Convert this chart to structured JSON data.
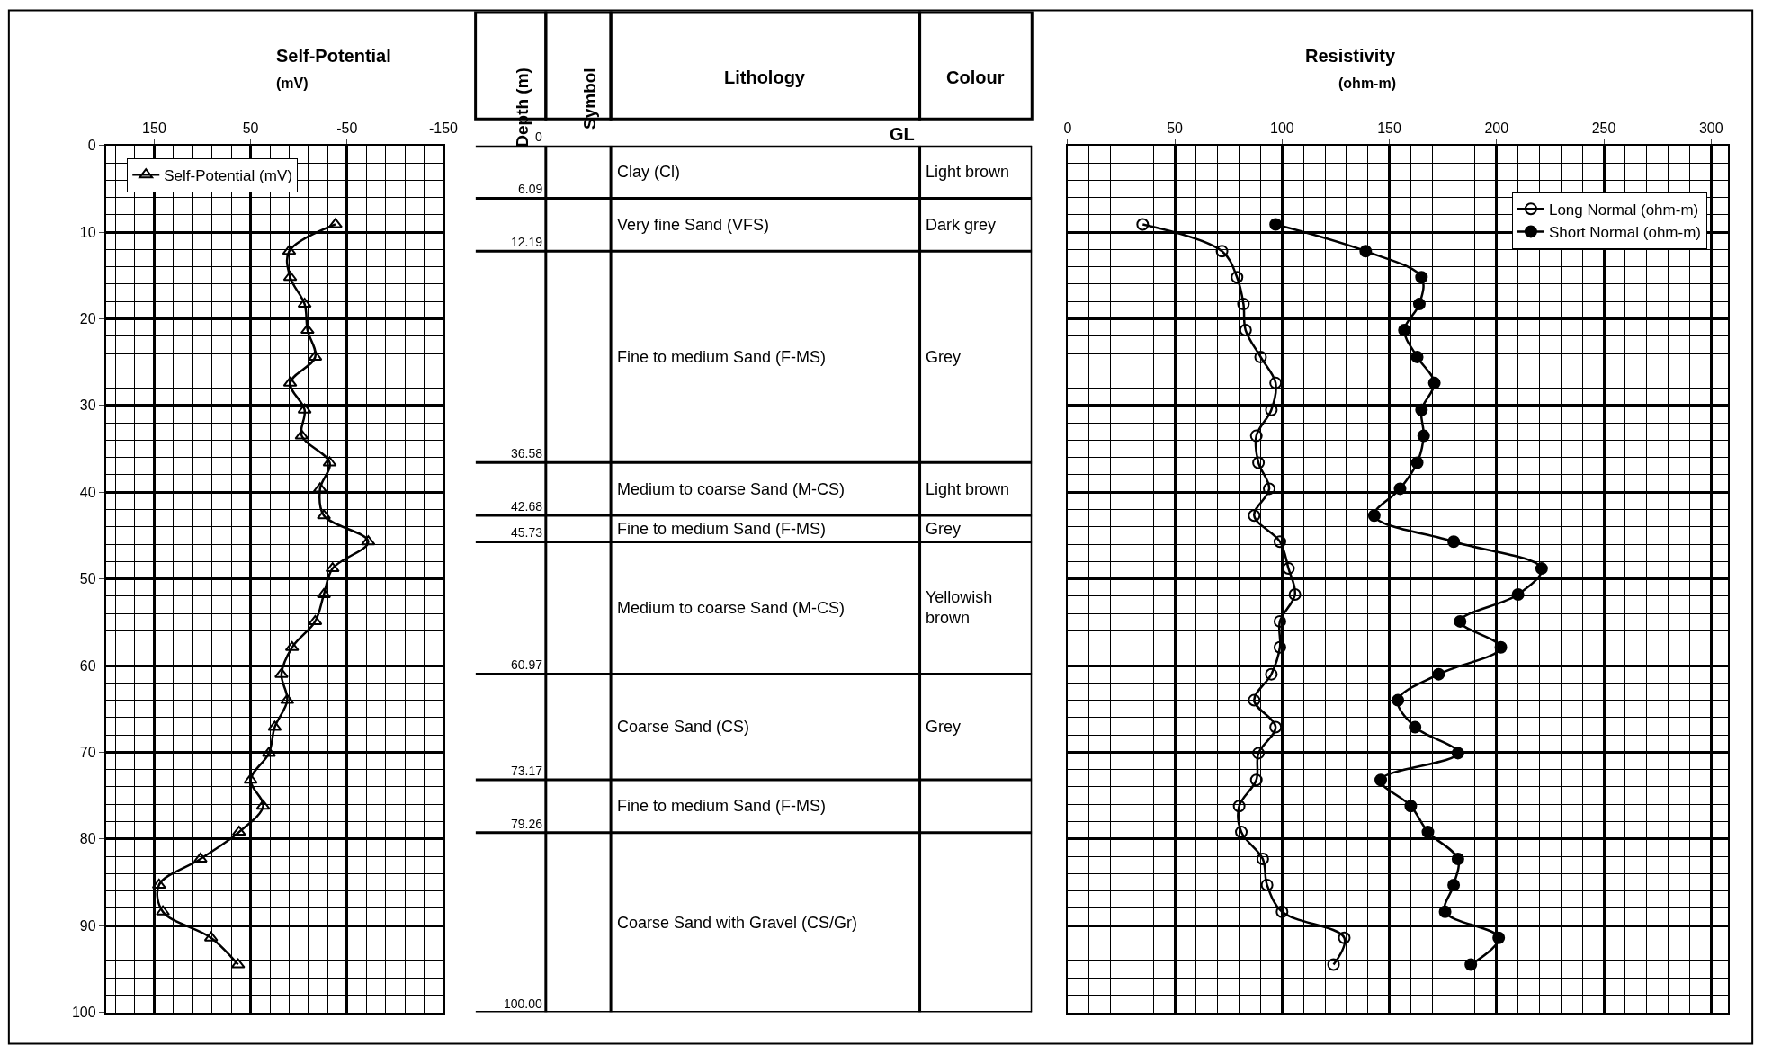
{
  "chart_data": [
    {
      "type": "line",
      "title": "Self-Potential",
      "subtitle": "(mV)",
      "xlim": [
        200,
        -150
      ],
      "xticks": [
        150,
        50,
        -50,
        -150
      ],
      "ylim": [
        100,
        0
      ],
      "yticks": [
        0,
        10,
        20,
        30,
        40,
        50,
        60,
        70,
        80,
        90,
        100
      ],
      "grid": true,
      "legend": "top left",
      "series": [
        {
          "name": "Self-Potential (mV)",
          "color": "#000000",
          "marker": "triangle-open",
          "x": [
            -38,
            10,
            9,
            -6,
            -9,
            -17,
            9,
            -6,
            -3,
            -32,
            -22,
            -26,
            -72,
            -35,
            -26,
            -17,
            7,
            18,
            12,
            25,
            31,
            50,
            37,
            62,
            102,
            145,
            141,
            91,
            63
          ],
          "values": [
            9.1,
            12.2,
            15.2,
            18.3,
            21.3,
            24.4,
            27.4,
            30.5,
            33.5,
            36.6,
            39.6,
            42.7,
            45.7,
            48.8,
            51.8,
            54.9,
            57.9,
            61.0,
            64.0,
            67.1,
            70.1,
            73.2,
            76.2,
            79.2,
            82.3,
            85.3,
            88.4,
            91.4,
            94.5
          ]
        }
      ]
    },
    {
      "type": "other",
      "categories": [
        "Depth (m)",
        "Symbol",
        "Lithology",
        "Colour"
      ],
      "annotations": [
        "GL",
        "0",
        "Clay (Cl)",
        "Light brown",
        "6.09",
        "Very fine Sand (VFS)",
        "Dark grey",
        "12.19",
        "Fine to medium Sand (F-MS)",
        "Grey",
        "36.58",
        "Medium to coarse Sand (M-CS)",
        "Light brown",
        "42.68",
        "Fine to medium Sand (F-MS)",
        "Grey",
        "45.73",
        "Medium to coarse Sand (M-CS)",
        "Yellowish brown",
        "60.97",
        "Coarse Sand (CS)",
        "Grey",
        "73.17",
        "Fine to medium Sand (F-MS)",
        "79.26",
        "Coarse Sand with Gravel (CS/Gr)",
        "100.00"
      ]
    },
    {
      "type": "line",
      "title": "Resistivity",
      "subtitle": "(ohm-m)",
      "xlim": [
        0,
        308
      ],
      "xticks": [
        0,
        50,
        100,
        150,
        200,
        250,
        300
      ],
      "ylim": [
        100,
        0
      ],
      "yticks": [
        0,
        10,
        20,
        30,
        40,
        50,
        60,
        70,
        80,
        90,
        100
      ],
      "tick_labels": "x",
      "grid": true,
      "legend": "top right",
      "series": [
        {
          "name": "Long Normal (ohm-m)",
          "color": "#000000",
          "marker": "circle-open",
          "x": [
            35,
            72,
            79,
            82,
            83,
            90,
            97,
            95,
            88,
            89,
            94,
            87,
            99,
            103,
            106,
            99,
            99,
            95,
            87,
            97,
            89,
            88,
            80,
            81,
            91,
            93,
            100,
            129,
            124
          ],
          "values": [
            9.1,
            12.2,
            15.2,
            18.3,
            21.3,
            24.4,
            27.4,
            30.5,
            33.5,
            36.6,
            39.6,
            42.7,
            45.7,
            48.8,
            51.8,
            54.9,
            57.9,
            61.0,
            64.0,
            67.1,
            70.1,
            73.2,
            76.2,
            79.2,
            82.3,
            85.3,
            88.4,
            91.4,
            94.5
          ]
        },
        {
          "name": "Short Normal (ohm-m)",
          "color": "#000000",
          "marker": "circle",
          "x": [
            97,
            139,
            165,
            164,
            157,
            163,
            171,
            165,
            166,
            163,
            155,
            143,
            180,
            221,
            210,
            183,
            202,
            173,
            154,
            162,
            182,
            146,
            160,
            168,
            182,
            180,
            176,
            201,
            188
          ],
          "values": [
            9.1,
            12.2,
            15.2,
            18.3,
            21.3,
            24.4,
            27.4,
            30.5,
            33.5,
            36.6,
            39.6,
            42.7,
            45.7,
            48.8,
            51.8,
            54.9,
            57.9,
            61.0,
            64.0,
            67.1,
            70.1,
            73.2,
            76.2,
            79.2,
            82.3,
            85.3,
            88.4,
            91.4,
            94.5
          ]
        }
      ]
    }
  ]
}
